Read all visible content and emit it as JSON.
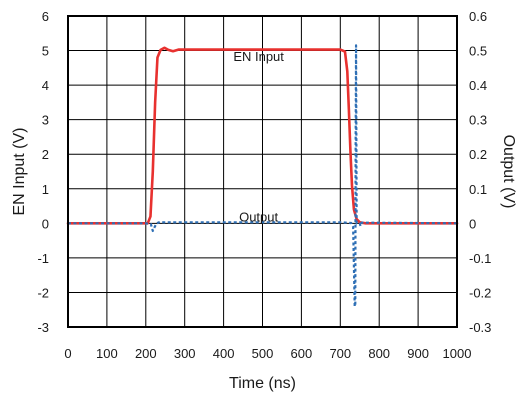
{
  "chart_data": {
    "type": "line",
    "xlabel": "Time (ns)",
    "ylabel": "EN Input (V)",
    "y2label": "Output (V)",
    "xlim": [
      0,
      1000
    ],
    "ylim": [
      -3,
      6
    ],
    "y2lim": [
      -0.3,
      0.6
    ],
    "x_ticks": [
      "0",
      "100",
      "200",
      "300",
      "400",
      "500",
      "600",
      "700",
      "800",
      "900",
      "1000"
    ],
    "y_ticks": [
      "6",
      "5",
      "4",
      "3",
      "2",
      "1",
      "0",
      "-1",
      "-2",
      "-3"
    ],
    "y2_ticks": [
      "0.6",
      "0.5",
      "0.4",
      "0.3",
      "0.2",
      "0.1",
      "0",
      "-0.1",
      "-0.2",
      "-0.3"
    ],
    "grid": true,
    "series": [
      {
        "name": "EN Input",
        "axis": "left",
        "color": "#e8312f",
        "style": "solid",
        "points": [
          [
            0,
            0
          ],
          [
            205,
            0
          ],
          [
            212,
            0.2
          ],
          [
            218,
            1.5
          ],
          [
            224,
            3.5
          ],
          [
            230,
            4.8
          ],
          [
            238,
            5.02
          ],
          [
            248,
            5.08
          ],
          [
            258,
            5.02
          ],
          [
            270,
            4.98
          ],
          [
            285,
            5.03
          ],
          [
            300,
            5.03
          ],
          [
            500,
            5.03
          ],
          [
            700,
            5.03
          ],
          [
            712,
            4.97
          ],
          [
            718,
            4.4
          ],
          [
            722,
            3.3
          ],
          [
            726,
            2.1
          ],
          [
            730,
            1.1
          ],
          [
            735,
            0.4
          ],
          [
            742,
            0.12
          ],
          [
            750,
            0.03
          ],
          [
            765,
            0.0
          ],
          [
            1000,
            0
          ]
        ]
      },
      {
        "name": "Output",
        "axis": "right",
        "color": "#2e6fb5",
        "style": "dashed",
        "points": [
          [
            0,
            0
          ],
          [
            200,
            0
          ],
          [
            213,
            -0.002
          ],
          [
            218,
            -0.022
          ],
          [
            223,
            -0.01
          ],
          [
            228,
            0.0
          ],
          [
            236,
            0.004
          ],
          [
            246,
            0.003
          ],
          [
            400,
            0.003
          ],
          [
            600,
            0.003
          ],
          [
            700,
            0.003
          ],
          [
            728,
            0.001
          ],
          [
            733,
            -0.01
          ],
          [
            737,
            -0.24
          ],
          [
            738.5,
            -0.24
          ],
          [
            739.5,
            0.24
          ],
          [
            740.5,
            0.515
          ],
          [
            742,
            0.0
          ],
          [
            750,
            0.0
          ],
          [
            752,
            -0.008
          ],
          [
            755,
            0.002
          ],
          [
            1000,
            0
          ]
        ]
      }
    ],
    "annotations": [
      {
        "text": "EN Input",
        "x": 490,
        "y": 4.7
      },
      {
        "text": "Output",
        "x": 490,
        "y": 0.06
      }
    ]
  }
}
